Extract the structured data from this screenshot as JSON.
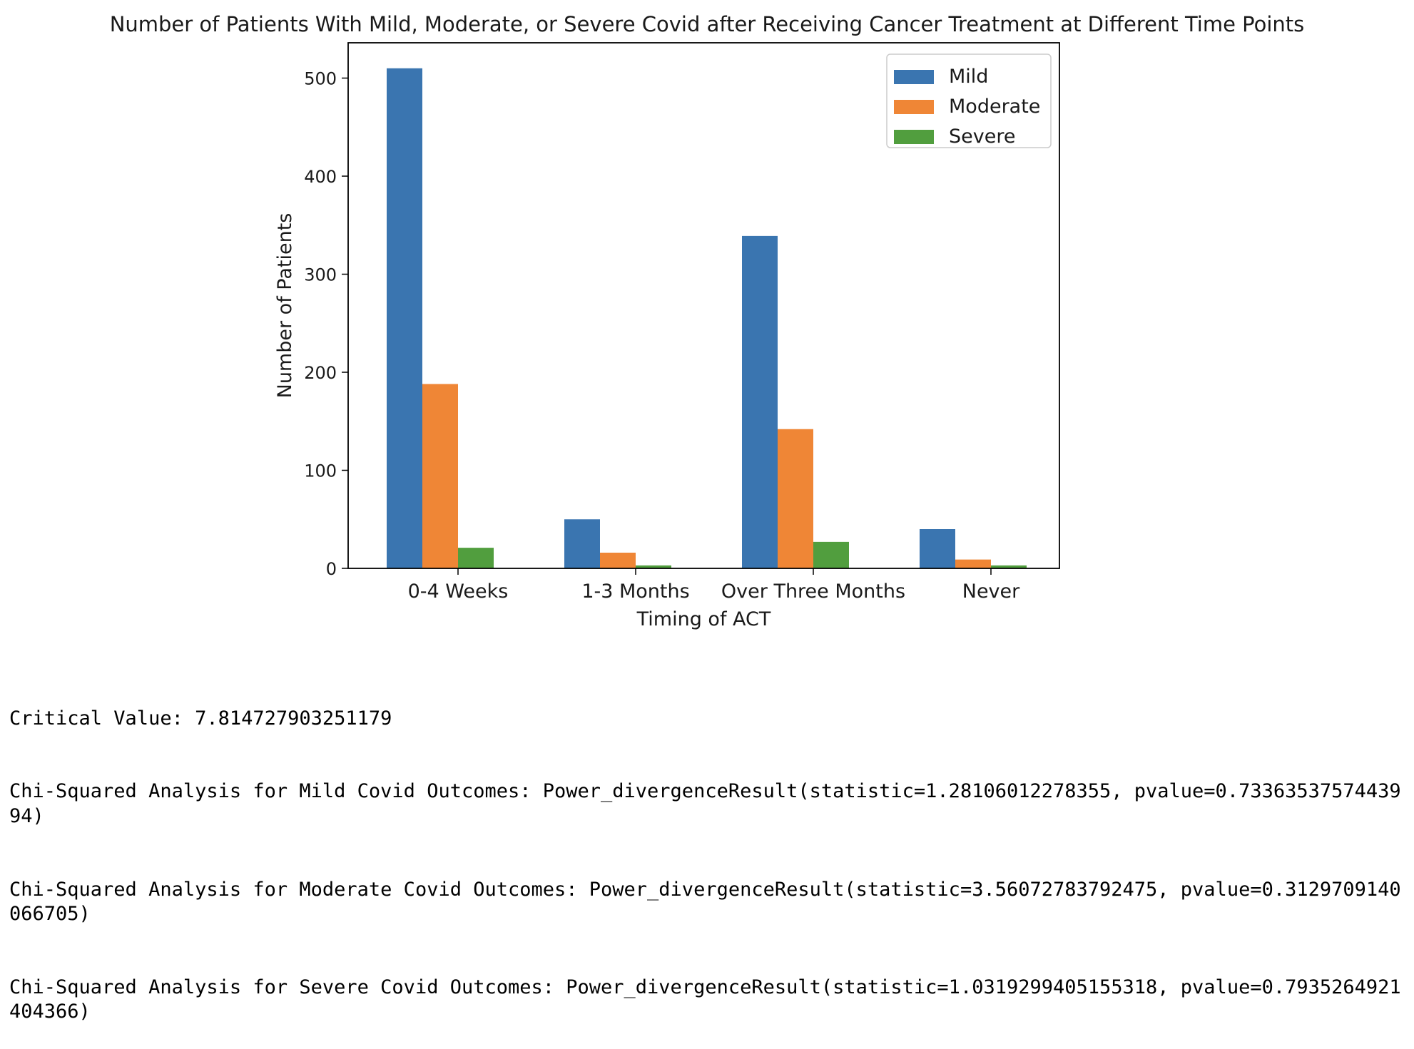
{
  "chart_data": {
    "type": "bar",
    "title": "Number of Patients With Mild, Moderate, or Severe Covid after Receiving Cancer Treatment at Different Time Points",
    "xlabel": "Timing of ACT",
    "ylabel": "Number of Patients",
    "categories": [
      "0-4 Weeks",
      "1-3 Months",
      "Over Three Months",
      "Never"
    ],
    "series": [
      {
        "name": "Mild",
        "color": "#3a75b0",
        "values": [
          510,
          50,
          339,
          40
        ]
      },
      {
        "name": "Moderate",
        "color": "#ef8636",
        "values": [
          188,
          16,
          142,
          9
        ]
      },
      {
        "name": "Severe",
        "color": "#519e3e",
        "values": [
          21,
          3,
          27,
          3
        ]
      }
    ],
    "ylim": [
      0,
      536
    ],
    "yticks": [
      0,
      100,
      200,
      300,
      400,
      500
    ],
    "legend_position": "top-right",
    "grid": false
  },
  "output_lines": [
    "Critical Value: 7.814727903251179",
    "Chi-Squared Analysis for Mild Covid Outcomes: Power_divergenceResult(statistic=1.28106012278355, pvalue=0.7336353757443994)",
    "Chi-Squared Analysis for Moderate Covid Outcomes: Power_divergenceResult(statistic=3.56072783792475, pvalue=0.3129709140066705)",
    "Chi-Squared Analysis for Severe Covid Outcomes: Power_divergenceResult(statistic=1.0319299405155318, pvalue=0.7935264921404366)"
  ]
}
